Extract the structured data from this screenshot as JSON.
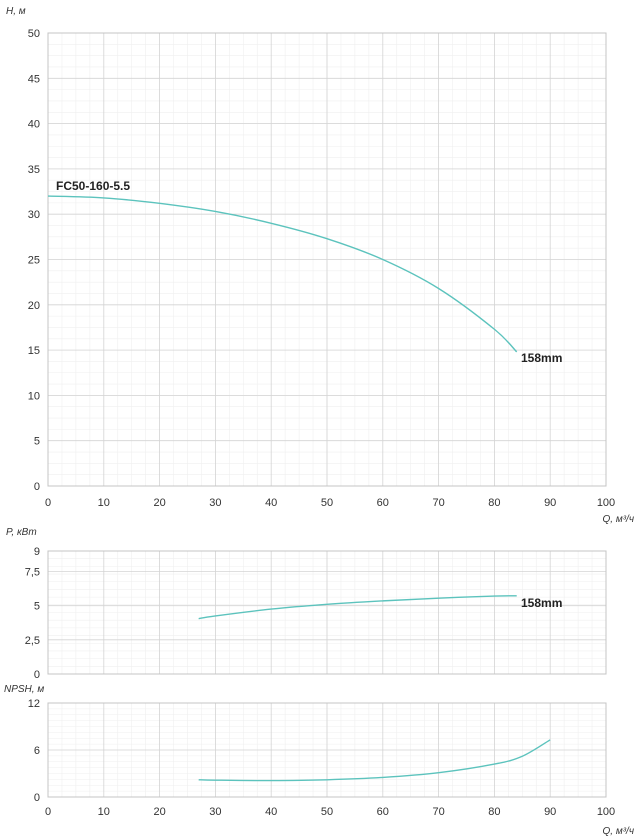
{
  "chart_data": [
    {
      "type": "line",
      "title": "",
      "xlabel": "Q, м³/ч",
      "ylabel": "H, м",
      "xlim": [
        0,
        100
      ],
      "ylim": [
        0,
        50
      ],
      "xticks": [
        "0",
        "10",
        "20",
        "30",
        "40",
        "50",
        "60",
        "70",
        "80",
        "90",
        "100"
      ],
      "yticks": [
        "0",
        "5",
        "10",
        "15",
        "20",
        "25",
        "30",
        "35",
        "40",
        "45",
        "50"
      ],
      "grid": true,
      "series": [
        {
          "name": "158mm",
          "x": [
            0,
            10,
            20,
            30,
            40,
            50,
            60,
            70,
            80,
            84
          ],
          "y": [
            32,
            31.8,
            31.2,
            30.3,
            29,
            27.3,
            25,
            21.8,
            17.3,
            14.8
          ]
        }
      ],
      "annotations": [
        "FC50-160-5.5",
        "158mm"
      ],
      "color": "#5cc3bd"
    },
    {
      "type": "line",
      "title": "",
      "xlabel": "",
      "ylabel": "P, кВт",
      "xlim": [
        0,
        100
      ],
      "ylim": [
        0,
        9
      ],
      "yticks": [
        "0",
        "2,5",
        "5",
        "7,5",
        "9"
      ],
      "grid": true,
      "series": [
        {
          "name": "158mm",
          "x": [
            27,
            30,
            40,
            50,
            60,
            70,
            80,
            84
          ],
          "y": [
            4.05,
            4.25,
            4.75,
            5.1,
            5.35,
            5.55,
            5.7,
            5.72
          ]
        }
      ],
      "annotations": [
        "158mm"
      ],
      "color": "#5cc3bd"
    },
    {
      "type": "line",
      "title": "",
      "xlabel": "Q, м³/ч",
      "ylabel": "NPSH, м",
      "xlim": [
        0,
        100
      ],
      "ylim": [
        0,
        12
      ],
      "xticks": [
        "0",
        "10",
        "20",
        "30",
        "40",
        "50",
        "60",
        "70",
        "80",
        "90",
        "100"
      ],
      "yticks": [
        "0",
        "6",
        "12"
      ],
      "grid": true,
      "series": [
        {
          "x": [
            27,
            30,
            40,
            50,
            60,
            70,
            80,
            85,
            90
          ],
          "y": [
            2.2,
            2.15,
            2.1,
            2.2,
            2.5,
            3.1,
            4.2,
            5.2,
            7.3
          ]
        }
      ],
      "color": "#5cc3bd"
    }
  ]
}
